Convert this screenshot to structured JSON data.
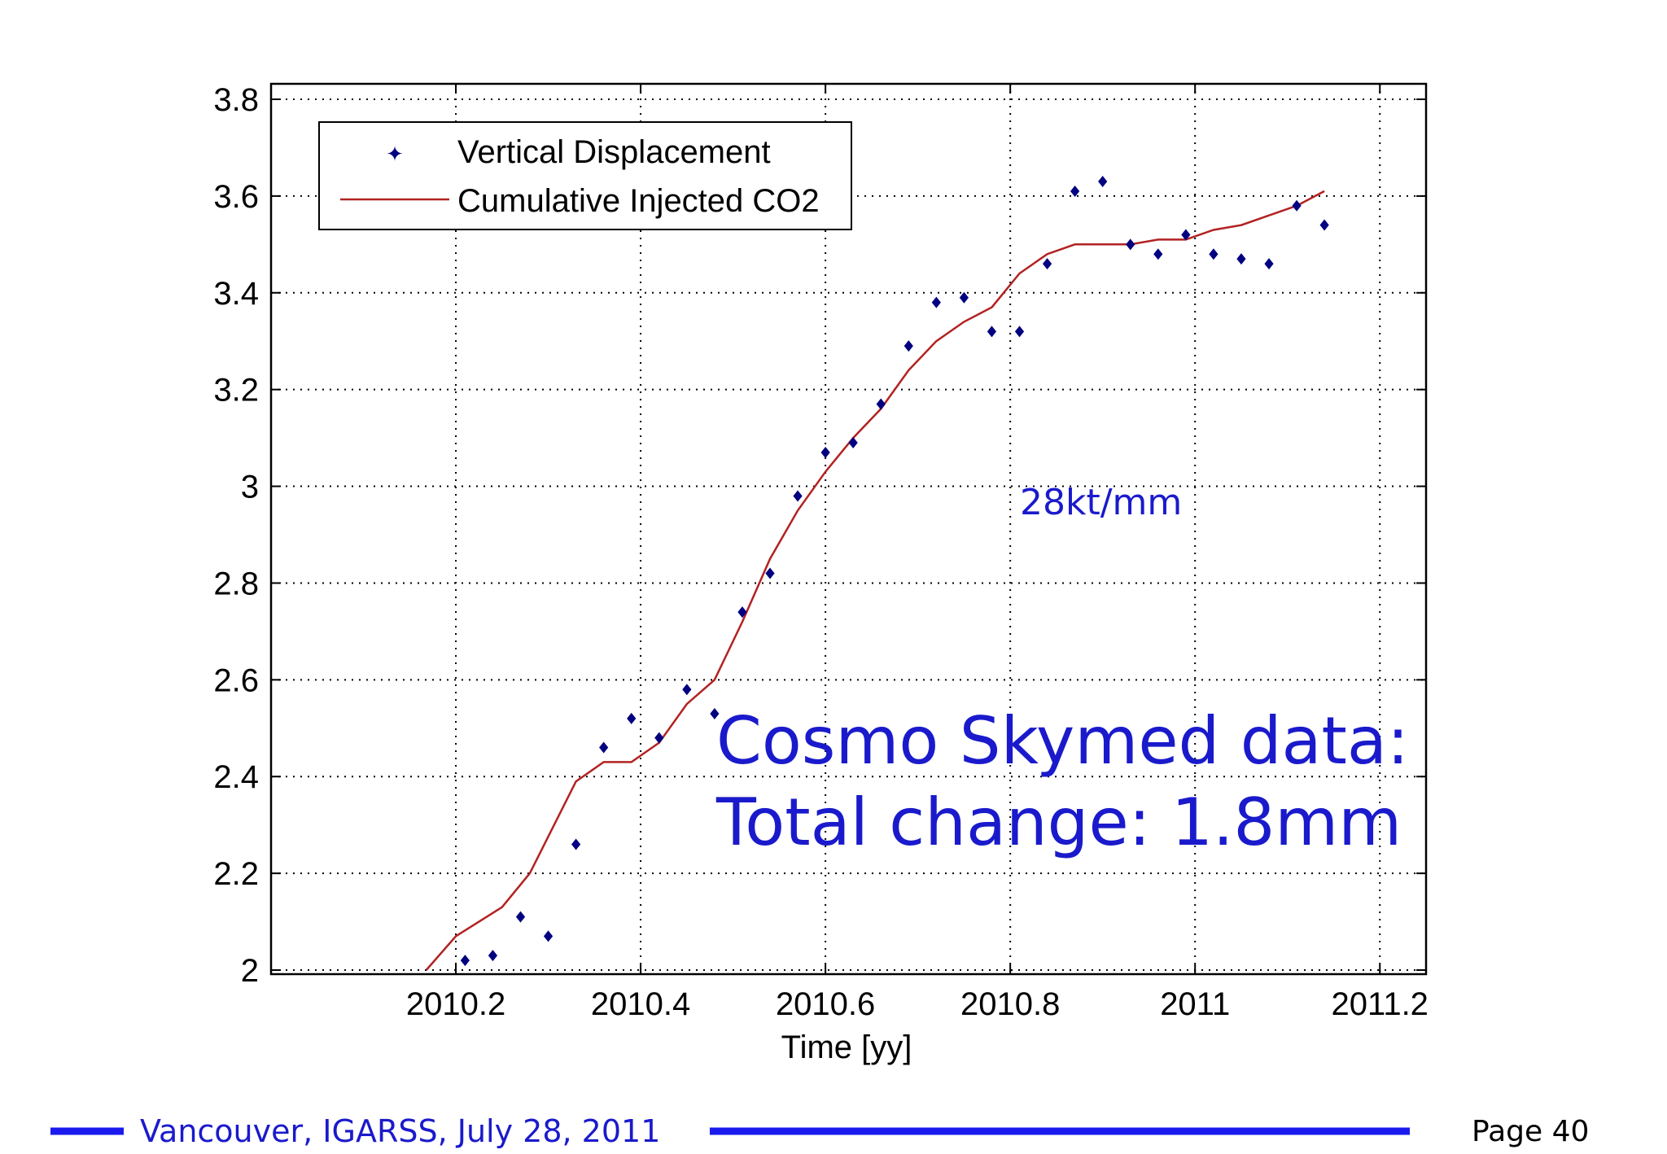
{
  "chart_data": {
    "type": "scatter",
    "xlabel": "Time [yy]",
    "ylabel": "",
    "xlim": [
      2010.0,
      2011.25
    ],
    "ylim": [
      2.0,
      3.8
    ],
    "x_ticks": [
      2010.2,
      2010.4,
      2010.6,
      2010.8,
      2011.0,
      2011.2
    ],
    "x_tick_labels": [
      "2010.2",
      "2010.4",
      "2010.6",
      "2010.8",
      "2011",
      "2011.2"
    ],
    "y_ticks": [
      2.0,
      2.2,
      2.4,
      2.6,
      2.8,
      3.0,
      3.2,
      3.4,
      3.6,
      3.8
    ],
    "y_tick_labels": [
      "2",
      "2.2",
      "2.4",
      "2.6",
      "2.8",
      "3",
      "3.2",
      "3.4",
      "3.6",
      "3.8"
    ],
    "grid": true,
    "legend_position": "top-left",
    "series": [
      {
        "name": "Vertical Displacement",
        "kind": "scatter",
        "color": "#000080",
        "points": [
          [
            2010.21,
            2.02
          ],
          [
            2010.24,
            2.03
          ],
          [
            2010.27,
            2.11
          ],
          [
            2010.3,
            2.07
          ],
          [
            2010.33,
            2.26
          ],
          [
            2010.36,
            2.46
          ],
          [
            2010.39,
            2.52
          ],
          [
            2010.42,
            2.48
          ],
          [
            2010.45,
            2.58
          ],
          [
            2010.48,
            2.53
          ],
          [
            2010.51,
            2.74
          ],
          [
            2010.54,
            2.82
          ],
          [
            2010.57,
            2.98
          ],
          [
            2010.6,
            3.07
          ],
          [
            2010.63,
            3.09
          ],
          [
            2010.66,
            3.17
          ],
          [
            2010.69,
            3.29
          ],
          [
            2010.72,
            3.38
          ],
          [
            2010.75,
            3.39
          ],
          [
            2010.78,
            3.32
          ],
          [
            2010.81,
            3.32
          ],
          [
            2010.84,
            3.46
          ],
          [
            2010.87,
            3.61
          ],
          [
            2010.9,
            3.63
          ],
          [
            2010.93,
            3.5
          ],
          [
            2010.96,
            3.48
          ],
          [
            2010.99,
            3.52
          ],
          [
            2011.02,
            3.48
          ],
          [
            2011.05,
            3.47
          ],
          [
            2011.08,
            3.46
          ],
          [
            2011.11,
            3.58
          ],
          [
            2011.14,
            3.54
          ]
        ]
      },
      {
        "name": "Cumulative Injected CO2",
        "kind": "line",
        "color": "#b22222",
        "points": [
          [
            2010.168,
            2.0
          ],
          [
            2010.2,
            2.07
          ],
          [
            2010.25,
            2.13
          ],
          [
            2010.28,
            2.2
          ],
          [
            2010.33,
            2.39
          ],
          [
            2010.36,
            2.43
          ],
          [
            2010.39,
            2.43
          ],
          [
            2010.42,
            2.47
          ],
          [
            2010.45,
            2.55
          ],
          [
            2010.48,
            2.6
          ],
          [
            2010.51,
            2.72
          ],
          [
            2010.54,
            2.85
          ],
          [
            2010.57,
            2.95
          ],
          [
            2010.6,
            3.03
          ],
          [
            2010.63,
            3.1
          ],
          [
            2010.66,
            3.16
          ],
          [
            2010.69,
            3.24
          ],
          [
            2010.72,
            3.3
          ],
          [
            2010.75,
            3.34
          ],
          [
            2010.78,
            3.37
          ],
          [
            2010.81,
            3.44
          ],
          [
            2010.84,
            3.48
          ],
          [
            2010.87,
            3.5
          ],
          [
            2010.9,
            3.5
          ],
          [
            2010.93,
            3.5
          ],
          [
            2010.96,
            3.51
          ],
          [
            2010.99,
            3.51
          ],
          [
            2011.02,
            3.53
          ],
          [
            2011.05,
            3.54
          ],
          [
            2011.08,
            3.56
          ],
          [
            2011.11,
            3.58
          ],
          [
            2011.14,
            3.61
          ]
        ]
      }
    ],
    "annotations": [
      "28kt/mm",
      "Cosmo Skymed data:",
      "Total change: 1.8mm"
    ]
  },
  "footer": {
    "text": "Vancouver, IGARSS, July 28, 2011",
    "page": "Page 40"
  },
  "colors": {
    "annotation": "#1a1acc",
    "footer_line": "#1a1aee"
  }
}
